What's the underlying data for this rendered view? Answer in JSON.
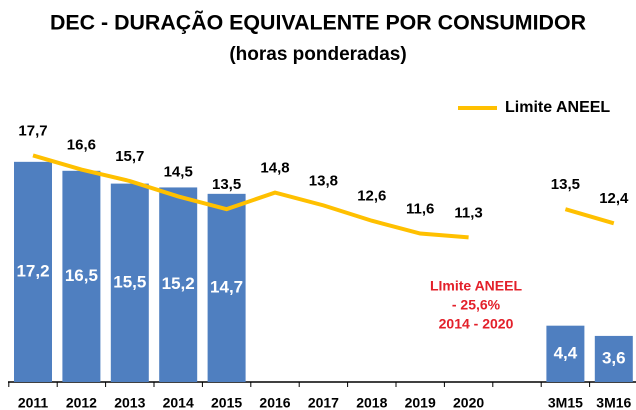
{
  "chart_data": {
    "type": "bar",
    "title": "DEC - DURAÇÃO EQUIVALENTE POR CONSUMIDOR",
    "subtitle": "(horas ponderadas)",
    "categories": [
      "2011",
      "2012",
      "2013",
      "2014",
      "2015",
      "2016",
      "2017",
      "2018",
      "2019",
      "2020",
      null,
      "3M15",
      "3M16"
    ],
    "series": [
      {
        "type": "bar",
        "color": "#4f7fc0",
        "values": [
          17.2,
          16.5,
          15.5,
          15.2,
          14.7,
          null,
          null,
          null,
          null,
          null,
          null,
          4.4,
          3.6
        ],
        "value_labels": [
          "17,2",
          "16,5",
          "15,5",
          "15,2",
          "14,7",
          null,
          null,
          null,
          null,
          null,
          null,
          "4,4",
          "3,6"
        ]
      },
      {
        "type": "line",
        "name": "Limite ANEEL",
        "color": "#ffc000",
        "values": [
          17.7,
          16.6,
          15.7,
          14.5,
          13.5,
          14.8,
          13.8,
          12.6,
          11.6,
          11.3,
          null,
          13.5,
          12.4
        ],
        "value_labels": [
          "17,7",
          "16,6",
          "15,7",
          "14,5",
          "13,5",
          "14,8",
          "13,8",
          "12,6",
          "11,6",
          "11,3",
          null,
          "13,5",
          "12,4"
        ]
      }
    ],
    "annotation": {
      "lines": [
        "LImite ANEEL",
        " - 25,6%",
        "2014 -  2020"
      ],
      "color": "#e3202a"
    }
  }
}
